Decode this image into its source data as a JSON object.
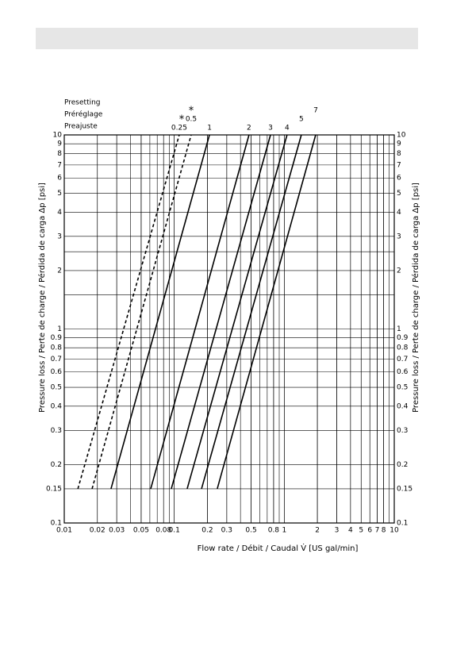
{
  "chart_data": {
    "type": "line",
    "legend_title": [
      "Presetting",
      "Préréglage",
      "Preajuste"
    ],
    "xlabel": "Flow rate / Débit / Caudal V̇ [US gal/min]",
    "ylabel": "Pressure loss / Perte de charge / Pérdida de carga Δp [psi]",
    "xscale": "log",
    "yscale": "log",
    "xlim": [
      0.01,
      10
    ],
    "ylim": [
      0.1,
      10
    ],
    "xticks": [
      0.01,
      0.02,
      0.03,
      0.05,
      0.08,
      0.1,
      0.2,
      0.3,
      0.5,
      0.8,
      1,
      2,
      3,
      4,
      5,
      6,
      7,
      8,
      10
    ],
    "yticks": [
      0.1,
      0.15,
      0.2,
      0.3,
      0.4,
      0.5,
      0.6,
      0.7,
      0.8,
      0.9,
      1,
      2,
      3,
      4,
      5,
      6,
      7,
      8,
      9,
      10
    ],
    "xgrid": [
      0.01,
      0.02,
      0.03,
      0.04,
      0.05,
      0.06,
      0.07,
      0.08,
      0.09,
      0.1,
      0.2,
      0.3,
      0.4,
      0.5,
      0.6,
      0.7,
      0.8,
      0.9,
      1,
      2,
      3,
      4,
      5,
      6,
      7,
      8,
      9,
      10
    ],
    "ygrid": [
      1.5,
      2.5
    ],
    "color": "#000000",
    "series": [
      {
        "name": "0.25",
        "footnote_mark": "*",
        "dashed": true,
        "x": [
          0.0133,
          0.111
        ],
        "y": [
          0.15,
          10
        ]
      },
      {
        "name": "0.5",
        "footnote_mark": "*",
        "dashed": true,
        "x": [
          0.0179,
          0.1425
        ],
        "y": [
          0.15,
          10
        ]
      },
      {
        "name": "1",
        "dashed": false,
        "x": [
          0.0266,
          0.209
        ],
        "y": [
          0.15,
          10
        ]
      },
      {
        "name": "2",
        "dashed": false,
        "x": [
          0.0611,
          0.478
        ],
        "y": [
          0.15,
          10
        ]
      },
      {
        "name": "3",
        "dashed": false,
        "x": [
          0.094,
          0.75
        ],
        "y": [
          0.15,
          10
        ]
      },
      {
        "name": "4",
        "dashed": false,
        "x": [
          0.131,
          1.06
        ],
        "y": [
          0.15,
          10
        ]
      },
      {
        "name": "5",
        "dashed": false,
        "x": [
          0.177,
          1.43
        ],
        "y": [
          0.15,
          10
        ]
      },
      {
        "name": "7",
        "dashed": false,
        "x": [
          0.246,
          1.93
        ],
        "y": [
          0.15,
          10
        ]
      }
    ]
  }
}
